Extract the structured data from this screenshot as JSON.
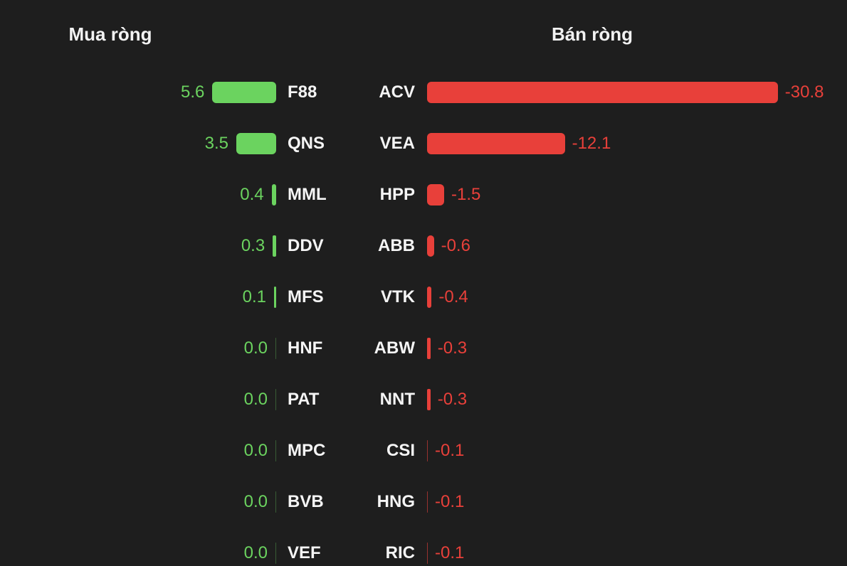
{
  "chart_data": {
    "type": "bar",
    "orientation": "horizontal",
    "colors": {
      "buy": "#6bd35f",
      "sell": "#e8403a",
      "background": "#1e1e1e"
    },
    "buy": {
      "title": "Mua ròng",
      "categories": [
        "F88",
        "QNS",
        "MML",
        "DDV",
        "MFS",
        "HNF",
        "PAT",
        "MPC",
        "BVB",
        "VEF"
      ],
      "values": [
        5.6,
        3.5,
        0.4,
        0.3,
        0.1,
        0.0,
        0.0,
        0.0,
        0.0,
        0.0
      ],
      "labels": [
        "5.6",
        "3.5",
        "0.4",
        "0.3",
        "0.1",
        "0.0",
        "0.0",
        "0.0",
        "0.0",
        "0.0"
      ]
    },
    "sell": {
      "title": "Bán ròng",
      "categories": [
        "ACV",
        "VEA",
        "HPP",
        "ABB",
        "VTK",
        "ABW",
        "NNT",
        "CSI",
        "HNG",
        "RIC"
      ],
      "values": [
        -30.8,
        -12.1,
        -1.5,
        -0.6,
        -0.4,
        -0.3,
        -0.3,
        -0.1,
        -0.1,
        -0.1
      ],
      "labels": [
        "-30.8",
        "-12.1",
        "-1.5",
        "-0.6",
        "-0.4",
        "-0.3",
        "-0.3",
        "-0.1",
        "-0.1",
        "-0.1"
      ]
    }
  }
}
